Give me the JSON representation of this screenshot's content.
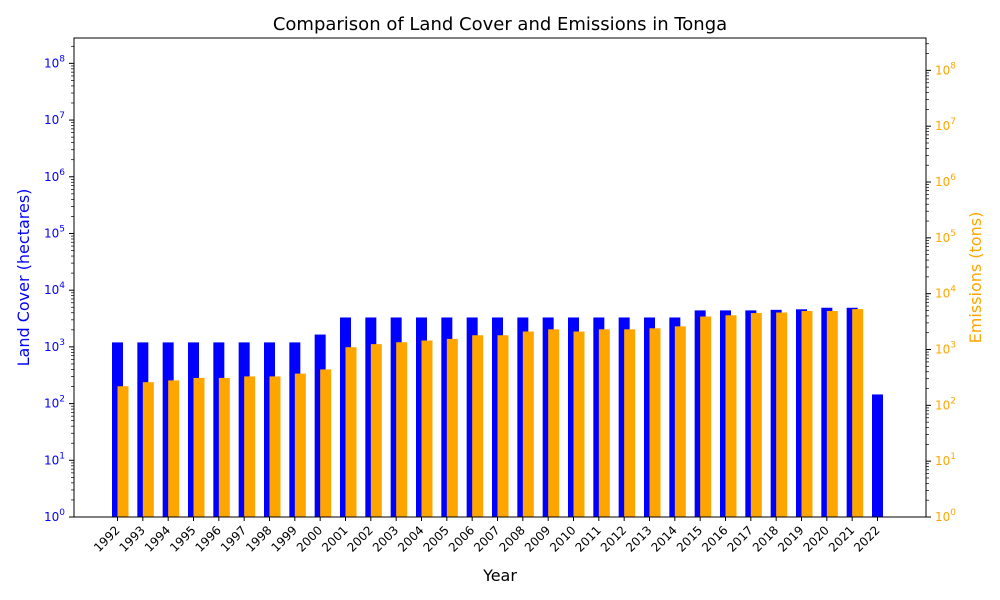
{
  "chart_data": {
    "type": "bar",
    "title": "Comparison of Land Cover and Emissions in Tonga",
    "xlabel": "Year",
    "ylabel_left": "Land Cover (hectares)",
    "ylabel_right": "Emissions (tons)",
    "yscale": "log",
    "ylim_left": [
      1,
      280000000
    ],
    "ylim_right": [
      1,
      380000000
    ],
    "categories": [
      "1992",
      "1993",
      "1994",
      "1995",
      "1996",
      "1997",
      "1998",
      "1999",
      "2000",
      "2001",
      "2002",
      "2003",
      "2004",
      "2005",
      "2006",
      "2007",
      "2008",
      "2009",
      "2010",
      "2011",
      "2012",
      "2013",
      "2014",
      "2015",
      "2016",
      "2017",
      "2018",
      "2019",
      "2020",
      "2021",
      "2022"
    ],
    "series": [
      {
        "name": "Land Cover (hectares)",
        "axis": "left",
        "color": "#0000ff",
        "values": [
          1200,
          1200,
          1200,
          1200,
          1200,
          1200,
          1200,
          1200,
          1650,
          3300,
          3300,
          3300,
          3300,
          3300,
          3300,
          3300,
          3300,
          3300,
          3300,
          3300,
          3300,
          3300,
          3300,
          4400,
          4400,
          4400,
          4500,
          4600,
          4900,
          4900,
          145
        ]
      },
      {
        "name": "Emissions (tons)",
        "axis": "right",
        "color": "#ffa500",
        "values": [
          220,
          260,
          280,
          310,
          310,
          330,
          330,
          370,
          440,
          1100,
          1250,
          1350,
          1450,
          1550,
          1800,
          1800,
          2100,
          2300,
          2100,
          2300,
          2300,
          2400,
          2600,
          3900,
          4100,
          4500,
          4600,
          4900,
          4900,
          5300,
          null
        ]
      }
    ],
    "left_ticks": [
      "10^0",
      "10^1",
      "10^2",
      "10^3",
      "10^4",
      "10^5",
      "10^6",
      "10^7",
      "10^8"
    ],
    "right_ticks": [
      "10^0",
      "10^1",
      "10^2",
      "10^3",
      "10^4",
      "10^5",
      "10^6",
      "10^7",
      "10^8"
    ]
  }
}
